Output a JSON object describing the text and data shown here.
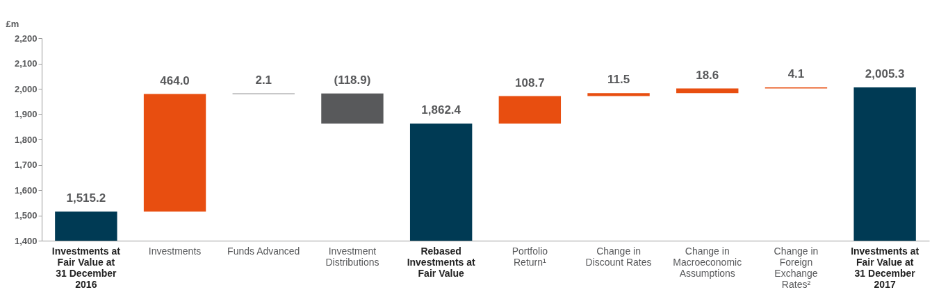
{
  "chart_data": {
    "type": "bar",
    "ylabel": "£m",
    "categories": [
      "Investments at Fair Value at 31 December 2016",
      "Investments",
      "Funds Advanced",
      "Investment Distributions",
      "Rebased Investments at Fair Value",
      "Portfolio Return¹",
      "Change in Discount Rates",
      "Change in Macroeconomic Assumptions",
      "Change in Foreign Exchange Rates²",
      "Investments at Fair Value at 31 December 2017"
    ],
    "values": [
      1515.2,
      464.0,
      2.1,
      -118.9,
      1862.4,
      108.7,
      11.5,
      18.6,
      4.1,
      2005.3
    ],
    "base": [
      null,
      1515.2,
      1979.2,
      1981.3,
      null,
      1862.4,
      1971.1,
      1982.6,
      2001.2,
      null
    ],
    "colors": [
      "#003a54",
      "#e84e10",
      "#58595b",
      "#58595b",
      "#003a54",
      "#e84e10",
      "#e84e10",
      "#e84e10",
      "#e84e10",
      "#003a54"
    ],
    "value_labels": [
      "1,515.2",
      "464.0",
      "2.1",
      "(118.9)",
      "1,862.4",
      "108.7",
      "11.5",
      "18.6",
      "4.1",
      "2,005.3"
    ],
    "ylim": [
      1400,
      2200
    ],
    "yticks": [
      {
        "value": 1400,
        "label": "1,400"
      },
      {
        "value": 1500,
        "label": "1,500"
      },
      {
        "value": 1600,
        "label": "1,600"
      },
      {
        "value": 1700,
        "label": "1,700"
      },
      {
        "value": 1800,
        "label": "1,800"
      },
      {
        "value": 1900,
        "label": "1,900"
      },
      {
        "value": 2000,
        "label": "2,000"
      },
      {
        "value": 2100,
        "label": "2,100"
      },
      {
        "value": 2200,
        "label": "2,200"
      }
    ],
    "grid": false
  }
}
